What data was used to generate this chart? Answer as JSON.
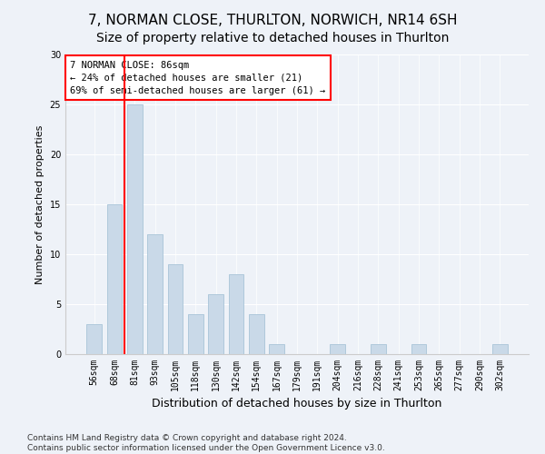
{
  "title1": "7, NORMAN CLOSE, THURLTON, NORWICH, NR14 6SH",
  "title2": "Size of property relative to detached houses in Thurlton",
  "xlabel": "Distribution of detached houses by size in Thurlton",
  "ylabel": "Number of detached properties",
  "categories": [
    "56sqm",
    "68sqm",
    "81sqm",
    "93sqm",
    "105sqm",
    "118sqm",
    "130sqm",
    "142sqm",
    "154sqm",
    "167sqm",
    "179sqm",
    "191sqm",
    "204sqm",
    "216sqm",
    "228sqm",
    "241sqm",
    "253sqm",
    "265sqm",
    "277sqm",
    "290sqm",
    "302sqm"
  ],
  "values": [
    3,
    15,
    25,
    12,
    9,
    4,
    6,
    8,
    4,
    1,
    0,
    0,
    1,
    0,
    1,
    0,
    1,
    0,
    0,
    0,
    1
  ],
  "bar_color": "#c9d9e8",
  "bar_edgecolor": "#a8c4d8",
  "redline_x": 1.5,
  "annotation_line1": "7 NORMAN CLOSE: 86sqm",
  "annotation_line2": "← 24% of detached houses are smaller (21)",
  "annotation_line3": "69% of semi-detached houses are larger (61) →",
  "annotation_box_color": "white",
  "annotation_box_edgecolor": "red",
  "ylim": [
    0,
    30
  ],
  "yticks": [
    0,
    5,
    10,
    15,
    20,
    25,
    30
  ],
  "footer1": "Contains HM Land Registry data © Crown copyright and database right 2024.",
  "footer2": "Contains public sector information licensed under the Open Government Licence v3.0.",
  "bg_color": "#eef2f8",
  "plot_bg_color": "#eef2f8",
  "title1_fontsize": 11,
  "title2_fontsize": 10,
  "xlabel_fontsize": 9,
  "ylabel_fontsize": 8,
  "tick_fontsize": 7,
  "footer_fontsize": 6.5
}
